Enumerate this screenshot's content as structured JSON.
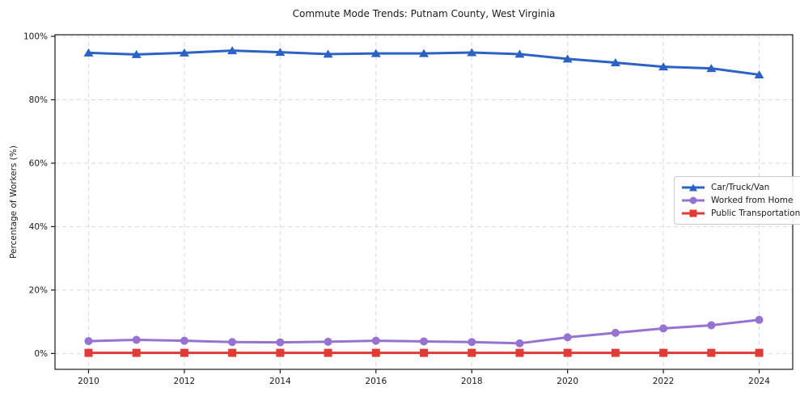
{
  "figure": {
    "background": "#ffffff"
  },
  "chart_data": {
    "type": "line",
    "title": "Commute Mode Trends: Putnam County, West Virginia",
    "ylabel": "Percentage of Workers (%)",
    "xlabel": "",
    "x": [
      2010,
      2011,
      2012,
      2013,
      2014,
      2015,
      2016,
      2017,
      2018,
      2019,
      2020,
      2021,
      2022,
      2023,
      2024
    ],
    "series": [
      {
        "name": "Car/Truck/Van",
        "color": "#2b62c4",
        "marker": "triangle",
        "values": [
          94.8,
          94.3,
          94.8,
          95.5,
          95.0,
          94.4,
          94.6,
          94.6,
          94.9,
          94.4,
          92.9,
          91.7,
          90.4,
          89.9,
          87.9
        ]
      },
      {
        "name": "Worked from Home",
        "color": "#9673d2",
        "marker": "circle",
        "values": [
          3.9,
          4.3,
          4.0,
          3.6,
          3.5,
          3.7,
          4.0,
          3.8,
          3.6,
          3.2,
          5.1,
          6.5,
          7.9,
          8.9,
          10.6
        ]
      },
      {
        "name": "Public Transportation",
        "color": "#e13b35",
        "marker": "square",
        "values": [
          0.2,
          0.2,
          0.2,
          0.2,
          0.2,
          0.2,
          0.2,
          0.2,
          0.2,
          0.2,
          0.2,
          0.2,
          0.2,
          0.2,
          0.2
        ]
      }
    ],
    "xticks": {
      "values": [
        2010,
        2012,
        2014,
        2016,
        2018,
        2020,
        2022,
        2024
      ],
      "labels": [
        "2010",
        "2012",
        "2014",
        "2016",
        "2018",
        "2020",
        "2022",
        "2024"
      ]
    },
    "yticks": {
      "values": [
        0,
        20,
        40,
        60,
        80,
        100
      ],
      "labels": [
        "0%",
        "20%",
        "40%",
        "60%",
        "80%",
        "100%"
      ]
    },
    "xlim": [
      2009.3,
      2024.7
    ],
    "ylim": [
      -5,
      100.5
    ],
    "grid": "dashed",
    "grid_color": "#d9d9d9",
    "axis_color": "#1a1a1a",
    "text_color": "#1a1a1a",
    "legend_position": "center-right"
  }
}
